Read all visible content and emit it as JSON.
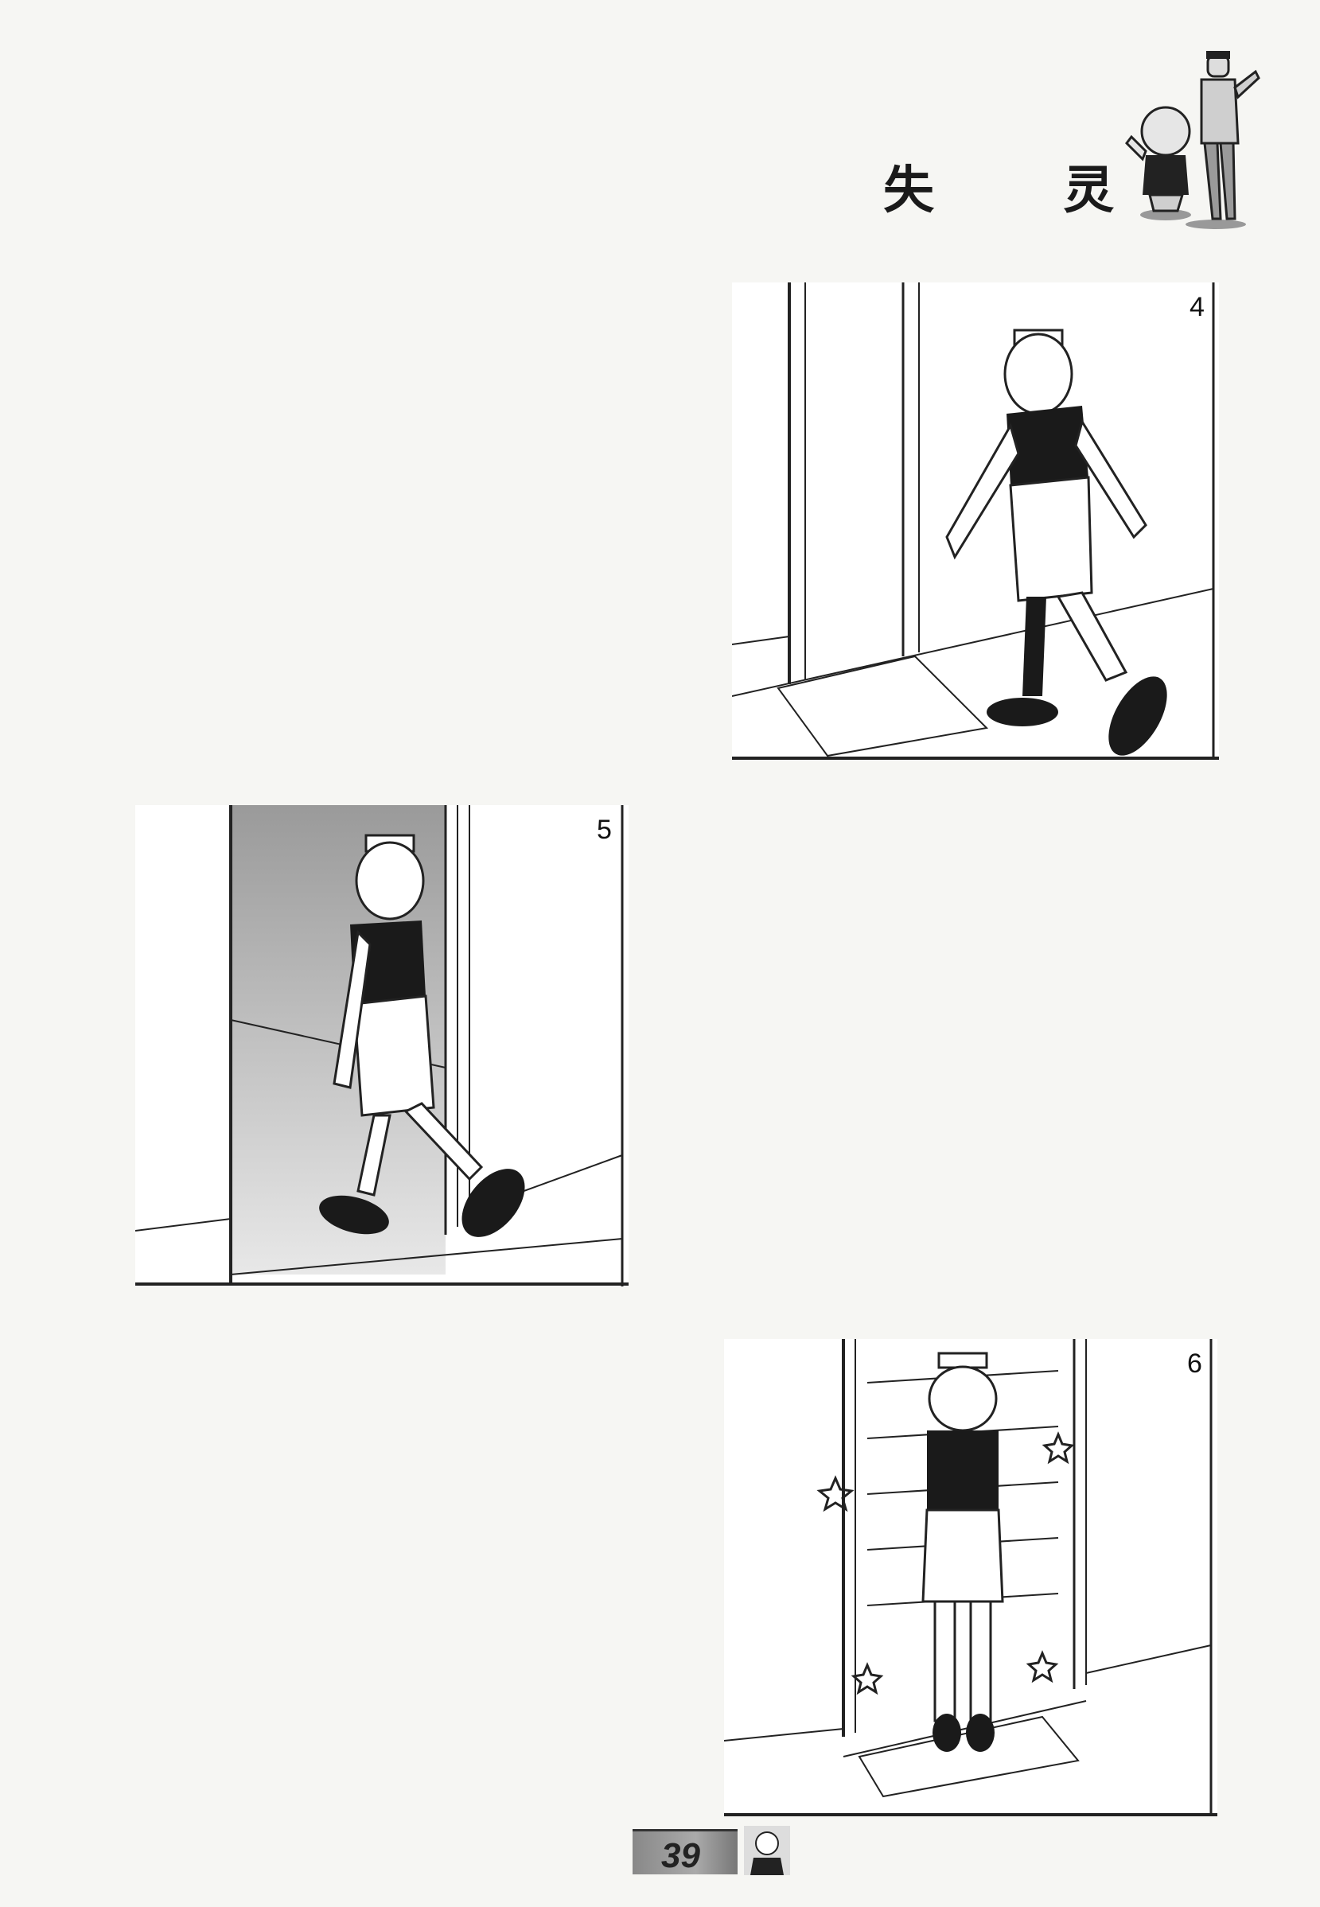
{
  "title": "失 灵",
  "panels": [
    {
      "number": "4"
    },
    {
      "number": "5"
    },
    {
      "number": "6"
    }
  ],
  "footer": {
    "page_number": "39"
  },
  "icons": {
    "mascot": "two-characters-mascot-icon",
    "footer": "character-portrait-icon"
  }
}
